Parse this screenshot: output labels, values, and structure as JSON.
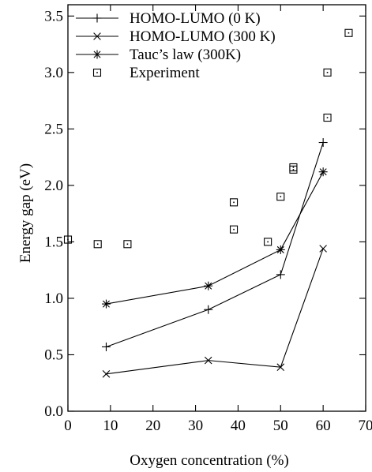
{
  "chart_data": {
    "type": "scatter",
    "title": "",
    "xlabel": "Oxygen concentration (%)",
    "ylabel": "Energy gap (eV)",
    "xlim": [
      0,
      70
    ],
    "ylim": [
      0.0,
      3.6
    ],
    "xticks": [
      0,
      10,
      20,
      30,
      40,
      50,
      60,
      70
    ],
    "yticks": [
      0.0,
      0.5,
      1.0,
      1.5,
      2.0,
      2.5,
      3.0,
      3.5
    ],
    "xtick_labels": [
      "0",
      "10",
      "20",
      "30",
      "40",
      "50",
      "60",
      "70"
    ],
    "ytick_labels": [
      "0.0",
      "0.5",
      "1.0",
      "1.5",
      "2.0",
      "2.5",
      "3.0",
      "3.5"
    ],
    "grid": false,
    "legend_position": "top-left",
    "series": [
      {
        "name": "HOMO-LUMO (0 K)",
        "marker": "plus",
        "line": true,
        "x": [
          9,
          33,
          50,
          60
        ],
        "y": [
          0.57,
          0.9,
          1.21,
          2.38
        ]
      },
      {
        "name": "HOMO-LUMO (300 K)",
        "marker": "cross",
        "line": true,
        "x": [
          9,
          33,
          50,
          60
        ],
        "y": [
          0.33,
          0.45,
          0.39,
          1.44
        ]
      },
      {
        "name": "Tauc’s law (300K)",
        "marker": "star",
        "line": true,
        "x": [
          9,
          33,
          50,
          60
        ],
        "y": [
          0.95,
          1.11,
          1.43,
          2.12
        ]
      },
      {
        "name": "Experiment",
        "marker": "square-dot",
        "line": false,
        "x": [
          0,
          7,
          14,
          39,
          39,
          47,
          50,
          53,
          53,
          61,
          61,
          66
        ],
        "y": [
          1.52,
          1.48,
          1.48,
          1.61,
          1.85,
          1.5,
          1.9,
          2.14,
          2.16,
          2.6,
          3.0,
          3.35
        ]
      }
    ]
  }
}
